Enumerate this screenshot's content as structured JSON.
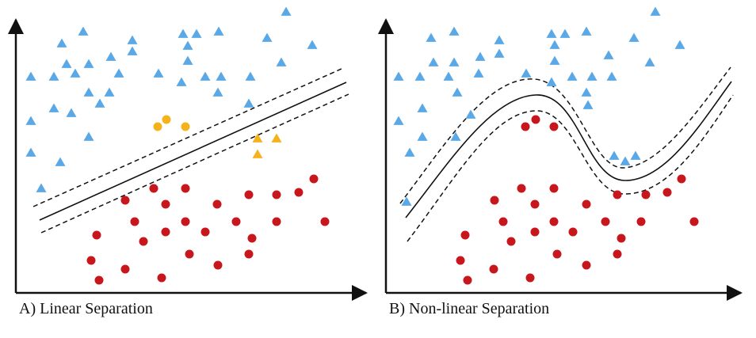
{
  "colors": {
    "class_blue": "#5aa9e6",
    "class_red": "#c8161d",
    "support_orange": "#f5b21b",
    "axis": "#111111",
    "boundary": "#111111"
  },
  "panels": [
    {
      "id": "linear",
      "caption": "A) Linear Separation",
      "boundary": "straight line with dashed margins",
      "blue_triangles": [
        [
          39,
          97
        ],
        [
          68,
          97
        ],
        [
          84,
          81
        ],
        [
          105,
          40
        ],
        [
          78,
          55
        ],
        [
          112,
          81
        ],
        [
          95,
          93
        ],
        [
          140,
          72
        ],
        [
          167,
          51
        ],
        [
          167,
          65
        ],
        [
          150,
          93
        ],
        [
          200,
          93
        ],
        [
          231,
          43
        ],
        [
          248,
          43
        ],
        [
          276,
          40
        ],
        [
          237,
          58
        ],
        [
          237,
          77
        ],
        [
          229,
          104
        ],
        [
          259,
          97
        ],
        [
          279,
          97
        ],
        [
          275,
          117
        ],
        [
          316,
          97
        ],
        [
          337,
          48
        ],
        [
          361,
          15
        ],
        [
          355,
          79
        ],
        [
          394,
          57
        ],
        [
          112,
          117
        ],
        [
          126,
          131
        ],
        [
          138,
          117
        ],
        [
          68,
          137
        ],
        [
          90,
          143
        ],
        [
          39,
          153
        ],
        [
          112,
          173
        ],
        [
          39,
          193
        ],
        [
          76,
          205
        ],
        [
          52,
          238
        ],
        [
          314,
          131
        ]
      ],
      "orange_circles": [
        [
          199,
          160
        ],
        [
          210,
          151
        ],
        [
          234,
          160
        ]
      ],
      "orange_triangles": [
        [
          325,
          175
        ],
        [
          349,
          175
        ],
        [
          325,
          195
        ]
      ],
      "red_circles": [
        [
          158,
          253
        ],
        [
          194,
          238
        ],
        [
          234,
          238
        ],
        [
          209,
          258
        ],
        [
          274,
          258
        ],
        [
          314,
          246
        ],
        [
          349,
          246
        ],
        [
          377,
          243
        ],
        [
          396,
          226
        ],
        [
          170,
          280
        ],
        [
          234,
          280
        ],
        [
          298,
          280
        ],
        [
          349,
          280
        ],
        [
          410,
          280
        ],
        [
          122,
          297
        ],
        [
          181,
          305
        ],
        [
          209,
          293
        ],
        [
          259,
          293
        ],
        [
          318,
          301
        ],
        [
          115,
          329
        ],
        [
          158,
          340
        ],
        [
          125,
          354
        ],
        [
          204,
          351
        ],
        [
          239,
          321
        ],
        [
          275,
          335
        ],
        [
          314,
          321
        ]
      ]
    },
    {
      "id": "nonlinear",
      "caption": "B) Non-linear Separation",
      "boundary": "curved line with dashed margins",
      "blue_triangles": [
        [
          503,
          97
        ],
        [
          530,
          97
        ],
        [
          544,
          48
        ],
        [
          573,
          40
        ],
        [
          547,
          79
        ],
        [
          573,
          79
        ],
        [
          566,
          97
        ],
        [
          630,
          51
        ],
        [
          630,
          68
        ],
        [
          606,
          72
        ],
        [
          604,
          93
        ],
        [
          664,
          93
        ],
        [
          696,
          43
        ],
        [
          713,
          43
        ],
        [
          740,
          40
        ],
        [
          700,
          57
        ],
        [
          700,
          77
        ],
        [
          696,
          104
        ],
        [
          722,
          97
        ],
        [
          747,
          97
        ],
        [
          740,
          117
        ],
        [
          772,
          97
        ],
        [
          800,
          48
        ],
        [
          827,
          15
        ],
        [
          820,
          79
        ],
        [
          858,
          57
        ],
        [
          577,
          117
        ],
        [
          594,
          145
        ],
        [
          575,
          173
        ],
        [
          533,
          137
        ],
        [
          503,
          153
        ],
        [
          517,
          193
        ],
        [
          533,
          173
        ],
        [
          513,
          255
        ],
        [
          775,
          197
        ],
        [
          789,
          204
        ],
        [
          802,
          197
        ],
        [
          768,
          70
        ],
        [
          742,
          133
        ]
      ],
      "red_circles": [
        [
          663,
          160
        ],
        [
          676,
          151
        ],
        [
          699,
          160
        ],
        [
          624,
          253
        ],
        [
          658,
          238
        ],
        [
          699,
          238
        ],
        [
          675,
          258
        ],
        [
          740,
          258
        ],
        [
          779,
          246
        ],
        [
          815,
          246
        ],
        [
          842,
          243
        ],
        [
          860,
          226
        ],
        [
          635,
          280
        ],
        [
          699,
          280
        ],
        [
          764,
          280
        ],
        [
          809,
          280
        ],
        [
          876,
          280
        ],
        [
          587,
          297
        ],
        [
          645,
          305
        ],
        [
          675,
          293
        ],
        [
          723,
          293
        ],
        [
          784,
          301
        ],
        [
          581,
          329
        ],
        [
          623,
          340
        ],
        [
          590,
          354
        ],
        [
          669,
          351
        ],
        [
          703,
          321
        ],
        [
          740,
          335
        ],
        [
          779,
          321
        ]
      ]
    }
  ]
}
